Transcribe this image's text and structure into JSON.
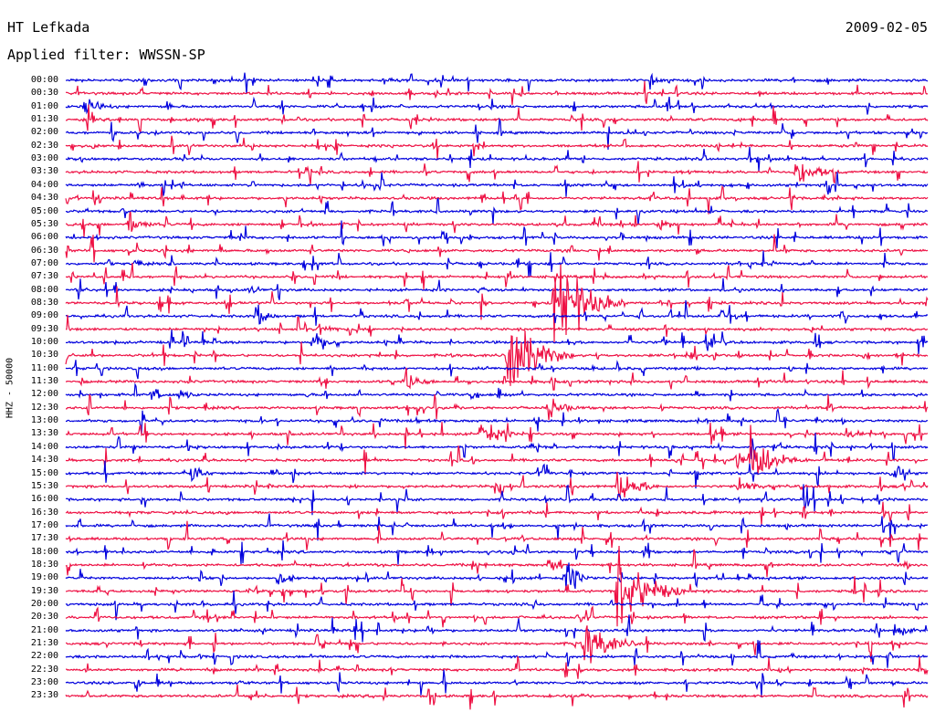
{
  "header": {
    "station": "HT Lefkada",
    "date": "2009-02-05",
    "filter_label": "Applied filter:",
    "filter_name": "WWSSN-SP"
  },
  "chart_data": {
    "type": "line",
    "title": "HT Lefkada",
    "ylabel": "HHZ - 50000",
    "row_labels": [
      "00:00",
      "00:30",
      "01:00",
      "01:30",
      "02:00",
      "02:30",
      "03:00",
      "03:30",
      "04:00",
      "04:30",
      "05:00",
      "05:30",
      "06:00",
      "06:30",
      "07:00",
      "07:30",
      "08:00",
      "08:30",
      "09:00",
      "09:30",
      "10:00",
      "10:30",
      "11:00",
      "11:30",
      "12:00",
      "12:30",
      "13:00",
      "13:30",
      "14:00",
      "14:30",
      "15:00",
      "15:30",
      "16:00",
      "16:30",
      "17:00",
      "17:30",
      "18:00",
      "18:30",
      "19:00",
      "19:30",
      "20:00",
      "20:30",
      "21:00",
      "21:30",
      "22:00",
      "22:30",
      "23:00",
      "23:30"
    ],
    "row_minutes": 15,
    "colors": {
      "even_rows": "#0000dd",
      "odd_rows": "#ee1144"
    },
    "events": [
      {
        "row": 0,
        "minute": 10.2,
        "amplitude": 6,
        "duration_min": 0.3
      },
      {
        "row": 2,
        "minute": 0.3,
        "amplitude": 10,
        "duration_min": 0.5
      },
      {
        "row": 7,
        "minute": 12.7,
        "amplitude": 12,
        "duration_min": 0.7
      },
      {
        "row": 11,
        "minute": 1.1,
        "amplitude": 10,
        "duration_min": 0.4
      },
      {
        "row": 11,
        "minute": 10.3,
        "amplitude": 6,
        "duration_min": 0.4
      },
      {
        "row": 16,
        "minute": 3.2,
        "amplitude": 6,
        "duration_min": 0.2
      },
      {
        "row": 17,
        "minute": 8.5,
        "amplitude": 55,
        "duration_min": 0.8
      },
      {
        "row": 18,
        "minute": 3.3,
        "amplitude": 12,
        "duration_min": 0.3
      },
      {
        "row": 19,
        "minute": 4.4,
        "amplitude": 8,
        "duration_min": 0.4
      },
      {
        "row": 20,
        "minute": 4.3,
        "amplitude": 14,
        "duration_min": 0.3
      },
      {
        "row": 21,
        "minute": 7.7,
        "amplitude": 50,
        "duration_min": 0.7
      },
      {
        "row": 23,
        "minute": 5.9,
        "amplitude": 12,
        "duration_min": 0.4
      },
      {
        "row": 24,
        "minute": 1.5,
        "amplitude": 8,
        "duration_min": 0.3
      },
      {
        "row": 24,
        "minute": 2.0,
        "amplitude": 8,
        "duration_min": 0.2
      },
      {
        "row": 25,
        "minute": 8.4,
        "amplitude": 12,
        "duration_min": 0.4
      },
      {
        "row": 26,
        "minute": 6.1,
        "amplitude": 6,
        "duration_min": 0.3
      },
      {
        "row": 27,
        "minute": 7.2,
        "amplitude": 14,
        "duration_min": 0.5
      },
      {
        "row": 27,
        "minute": 13.6,
        "amplitude": 8,
        "duration_min": 0.3
      },
      {
        "row": 29,
        "minute": 11.6,
        "amplitude": 10,
        "duration_min": 0.3
      },
      {
        "row": 29,
        "minute": 11.9,
        "amplitude": 30,
        "duration_min": 0.6
      },
      {
        "row": 30,
        "minute": 2.2,
        "amplitude": 10,
        "duration_min": 0.3
      },
      {
        "row": 31,
        "minute": 9.6,
        "amplitude": 20,
        "duration_min": 0.5
      },
      {
        "row": 31,
        "minute": 11.7,
        "amplitude": 10,
        "duration_min": 0.4
      },
      {
        "row": 37,
        "minute": 8.4,
        "amplitude": 10,
        "duration_min": 0.2
      },
      {
        "row": 38,
        "minute": 3.7,
        "amplitude": 8,
        "duration_min": 0.3
      },
      {
        "row": 38,
        "minute": 8.7,
        "amplitude": 20,
        "duration_min": 0.3
      },
      {
        "row": 39,
        "minute": 9.6,
        "amplitude": 45,
        "duration_min": 0.8
      },
      {
        "row": 42,
        "minute": 14.4,
        "amplitude": 10,
        "duration_min": 0.3
      },
      {
        "row": 43,
        "minute": 9.0,
        "amplitude": 24,
        "duration_min": 0.7
      }
    ]
  }
}
